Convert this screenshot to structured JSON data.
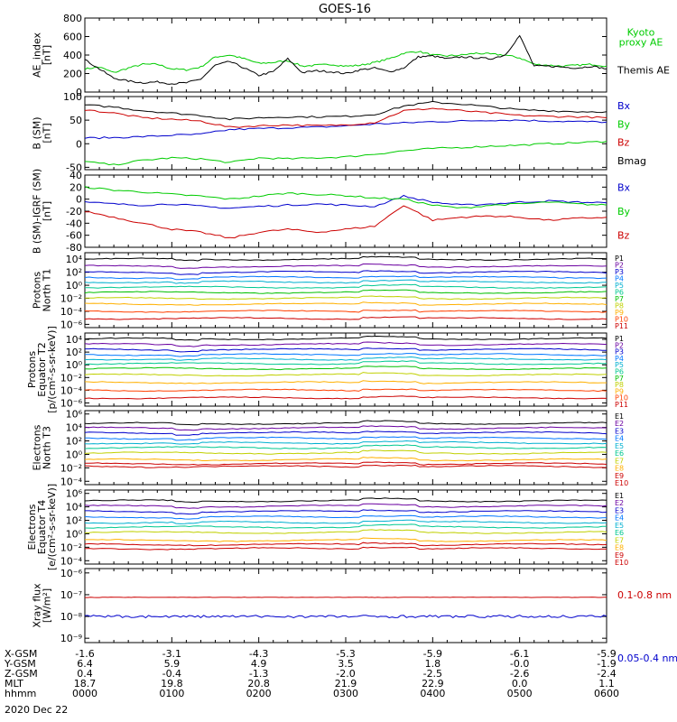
{
  "title": "GOES-16",
  "date_label": "2020 Dec 22",
  "orbit_rows": [
    {
      "label": "X-GSM",
      "values": [
        "-1.6",
        "-3.1",
        "-4.3",
        "-5.3",
        "-5.9",
        "-6.1",
        "-5.9"
      ]
    },
    {
      "label": "Y-GSM",
      "values": [
        "6.4",
        "5.9",
        "4.9",
        "3.5",
        "1.8",
        "-0.0",
        "-1.9"
      ]
    },
    {
      "label": "Z-GSM",
      "values": [
        "0.4",
        "-0.4",
        "-1.3",
        "-2.0",
        "-2.5",
        "-2.6",
        "-2.4"
      ]
    },
    {
      "label": "MLT",
      "values": [
        "18.7",
        "19.8",
        "20.8",
        "21.9",
        "22.9",
        "0.0",
        "1.1"
      ]
    },
    {
      "label": "hhmm",
      "values": [
        "0000",
        "0100",
        "0200",
        "0300",
        "0400",
        "0500",
        "0600"
      ]
    }
  ],
  "chart_data": [
    {
      "id": "ae",
      "type": "line",
      "ylabel_lines": [
        "AE_index",
        "[nT]"
      ],
      "yticks": [
        "800",
        "600",
        "400",
        "200",
        "0"
      ],
      "ylim": [
        0,
        800
      ],
      "log": false,
      "x": [
        0,
        10,
        20,
        30,
        40,
        50,
        60,
        70,
        80,
        90,
        100,
        110,
        120,
        130,
        140,
        150,
        160,
        170,
        180,
        190,
        200,
        210,
        220,
        230,
        240,
        250,
        260,
        270,
        280,
        290,
        300,
        310,
        320,
        330,
        340,
        350,
        360
      ],
      "series": [
        {
          "name": "Kyoto proxy AE",
          "name_lines": [
            "Kyoto",
            "proxy AE"
          ],
          "color": "#00cc00",
          "values": [
            250,
            270,
            210,
            260,
            300,
            300,
            250,
            240,
            270,
            380,
            400,
            360,
            310,
            320,
            340,
            280,
            290,
            300,
            280,
            290,
            320,
            360,
            420,
            440,
            400,
            390,
            400,
            420,
            410,
            400,
            370,
            300,
            290,
            280,
            290,
            300,
            280
          ]
        },
        {
          "name": "Themis AE",
          "name_lines": [
            "Themis AE"
          ],
          "color": "#000000",
          "values": [
            350,
            250,
            150,
            120,
            100,
            110,
            90,
            100,
            140,
            290,
            330,
            260,
            180,
            220,
            360,
            210,
            230,
            220,
            200,
            240,
            260,
            220,
            260,
            380,
            390,
            360,
            380,
            370,
            360,
            400,
            610,
            280,
            280,
            270,
            260,
            280,
            250
          ]
        }
      ]
    },
    {
      "id": "bsm",
      "type": "line",
      "ylabel_lines": [
        "B (SM)",
        "[nT]"
      ],
      "yticks": [
        "100",
        "50",
        "0",
        "-50"
      ],
      "ylim": [
        -55,
        100
      ],
      "log": false,
      "x": [
        0,
        20,
        40,
        60,
        80,
        100,
        120,
        140,
        160,
        180,
        200,
        220,
        240,
        260,
        280,
        300,
        320,
        340,
        360
      ],
      "series": [
        {
          "name": "Bx",
          "name_lines": [
            "Bx"
          ],
          "color": "#0000cc",
          "values": [
            12,
            13,
            15,
            18,
            20,
            30,
            32,
            34,
            35,
            38,
            42,
            44,
            47,
            48,
            50,
            50,
            48,
            47,
            46
          ]
        },
        {
          "name": "By",
          "name_lines": [
            "By"
          ],
          "color": "#00cc00",
          "values": [
            -38,
            -45,
            -35,
            -30,
            -32,
            -40,
            -30,
            -32,
            -30,
            -28,
            -22,
            -15,
            -10,
            -8,
            -5,
            -3,
            0,
            2,
            5
          ]
        },
        {
          "name": "Bz",
          "name_lines": [
            "Bz"
          ],
          "color": "#cc0000",
          "values": [
            72,
            65,
            55,
            52,
            48,
            35,
            38,
            40,
            38,
            40,
            45,
            70,
            75,
            70,
            65,
            60,
            58,
            57,
            55
          ]
        },
        {
          "name": "Bmag",
          "name_lines": [
            "Bmag"
          ],
          "color": "#000000",
          "values": [
            82,
            78,
            70,
            65,
            60,
            52,
            55,
            57,
            57,
            58,
            62,
            80,
            88,
            84,
            78,
            72,
            70,
            68,
            68
          ]
        }
      ]
    },
    {
      "id": "bdiff",
      "type": "line",
      "ylabel_lines": [
        "B (SM)-IGRF (SM)",
        "[nT]"
      ],
      "yticks": [
        "40",
        "20",
        "0",
        "-20",
        "-40",
        "-60",
        "-80"
      ],
      "ylim": [
        -80,
        40
      ],
      "log": false,
      "x": [
        0,
        20,
        40,
        60,
        80,
        100,
        120,
        140,
        160,
        180,
        200,
        220,
        240,
        260,
        280,
        300,
        320,
        340,
        360
      ],
      "series": [
        {
          "name": "Bx",
          "name_lines": [
            "Bx"
          ],
          "color": "#0000cc",
          "values": [
            -5,
            -8,
            -10,
            -8,
            -12,
            -15,
            -12,
            -10,
            -8,
            -10,
            -12,
            5,
            -5,
            -10,
            -8,
            -5,
            -3,
            -5,
            -6
          ]
        },
        {
          "name": "By",
          "name_lines": [
            "By"
          ],
          "color": "#00cc00",
          "values": [
            20,
            15,
            12,
            8,
            5,
            0,
            5,
            10,
            8,
            6,
            2,
            0,
            -10,
            -15,
            -10,
            -8,
            -5,
            -8,
            -10
          ]
        },
        {
          "name": "Bz",
          "name_lines": [
            "Bz"
          ],
          "color": "#cc0000",
          "values": [
            -20,
            -30,
            -40,
            -50,
            -55,
            -65,
            -55,
            -50,
            -55,
            -50,
            -45,
            -10,
            -35,
            -30,
            -28,
            -30,
            -35,
            -32,
            -30
          ]
        }
      ]
    },
    {
      "id": "p_north",
      "type": "line",
      "ylabel_lines": [
        "Protons",
        "North T1"
      ],
      "log": true,
      "yticks": [
        "10⁴",
        "10²",
        "10⁰",
        "10⁻²",
        "10⁻⁴",
        "10⁻⁶"
      ],
      "ylim": [
        -6.5,
        5
      ],
      "levels": [
        4.0,
        2.9,
        2.0,
        1.2,
        0.5,
        -0.3,
        -1.1,
        -2.0,
        -2.9,
        -4.0,
        -5.1
      ],
      "channels": [
        "P1",
        "P2",
        "P3",
        "P4",
        "P5",
        "P6",
        "P7",
        "P8",
        "P9",
        "P10",
        "P11"
      ],
      "colors": [
        "#000000",
        "#6a00a0",
        "#0000cc",
        "#0077ff",
        "#00b0d0",
        "#00c890",
        "#00c000",
        "#c0d000",
        "#ffb000",
        "#ff4000",
        "#cc0000"
      ]
    },
    {
      "id": "p_eq",
      "type": "line",
      "ylabel_lines": [
        "Protons",
        "Equator T2",
        "[p/(cm²-s-sr-keV)]"
      ],
      "log": true,
      "yticks": [
        "10⁴",
        "10²",
        "10⁰",
        "10⁻²",
        "10⁻⁴",
        "10⁻⁶"
      ],
      "ylim": [
        -6.5,
        5
      ],
      "levels": [
        4.1,
        3.2,
        2.4,
        1.6,
        0.9,
        0.2,
        -0.6,
        -1.6,
        -2.8,
        -4.0,
        -5.2
      ],
      "channels": [
        "P1",
        "P2",
        "P3",
        "P4",
        "P5",
        "P6",
        "P7",
        "P8",
        "P9",
        "P10",
        "P11"
      ],
      "colors": [
        "#000000",
        "#6a00a0",
        "#0000cc",
        "#0077ff",
        "#00b0d0",
        "#00c890",
        "#00c000",
        "#c0d000",
        "#ffb000",
        "#ff4000",
        "#cc0000"
      ]
    },
    {
      "id": "e_north",
      "type": "line",
      "ylabel_lines": [
        "Electrons",
        "North T3"
      ],
      "log": true,
      "yticks": [
        "10⁶",
        "10⁴",
        "10²",
        "10⁰",
        "10⁻²",
        "10⁻⁴"
      ],
      "ylim": [
        -4.5,
        6.5
      ],
      "levels": [
        4.6,
        3.9,
        3.2,
        2.4,
        1.7,
        1.0,
        0.2,
        -0.8,
        -1.4,
        -1.8
      ],
      "channels": [
        "E1",
        "E2",
        "E3",
        "E4",
        "E5",
        "E6",
        "E7",
        "E8",
        "E9",
        "E10"
      ],
      "colors": [
        "#000000",
        "#6a00a0",
        "#0000cc",
        "#0077ff",
        "#00b0d0",
        "#00c890",
        "#c0d000",
        "#ffb000",
        "#cc0000",
        "#cc0000"
      ]
    },
    {
      "id": "e_eq",
      "type": "line",
      "ylabel_lines": [
        "Electrons",
        "Equator T4",
        "[e/(cm²-s-sr-keV)]"
      ],
      "log": true,
      "yticks": [
        "10⁶",
        "10⁴",
        "10²",
        "10⁰",
        "10⁻²",
        "10⁻⁴"
      ],
      "ylim": [
        -4.5,
        6.5
      ],
      "levels": [
        4.9,
        4.1,
        3.3,
        2.5,
        1.7,
        1.0,
        0.2,
        -1.0,
        -1.6,
        -2.2
      ],
      "channels": [
        "E1",
        "E2",
        "E3",
        "E4",
        "E5",
        "E6",
        "E7",
        "E8",
        "E9",
        "E10"
      ],
      "colors": [
        "#000000",
        "#6a00a0",
        "#0000cc",
        "#0077ff",
        "#00b0d0",
        "#00c890",
        "#c0d000",
        "#ffb000",
        "#cc0000",
        "#cc0000"
      ]
    },
    {
      "id": "xray",
      "type": "line",
      "ylabel_lines": [
        "Xray flux",
        "[W/m²]"
      ],
      "log": true,
      "yticks": [
        "10⁻⁶",
        "10⁻⁷",
        "10⁻⁸",
        "10⁻⁹"
      ],
      "ylim": [
        -9.2,
        -5.8
      ],
      "series": [
        {
          "name": "0.1-0.8 nm",
          "name_lines": [
            "0.1-0.8 nm"
          ],
          "color": "#cc0000",
          "level": -7.12
        },
        {
          "name": "0.05-0.4 nm",
          "name_lines": [
            "0.05-0.4 nm"
          ],
          "color": "#0000cc",
          "level": -8.0
        }
      ]
    }
  ]
}
